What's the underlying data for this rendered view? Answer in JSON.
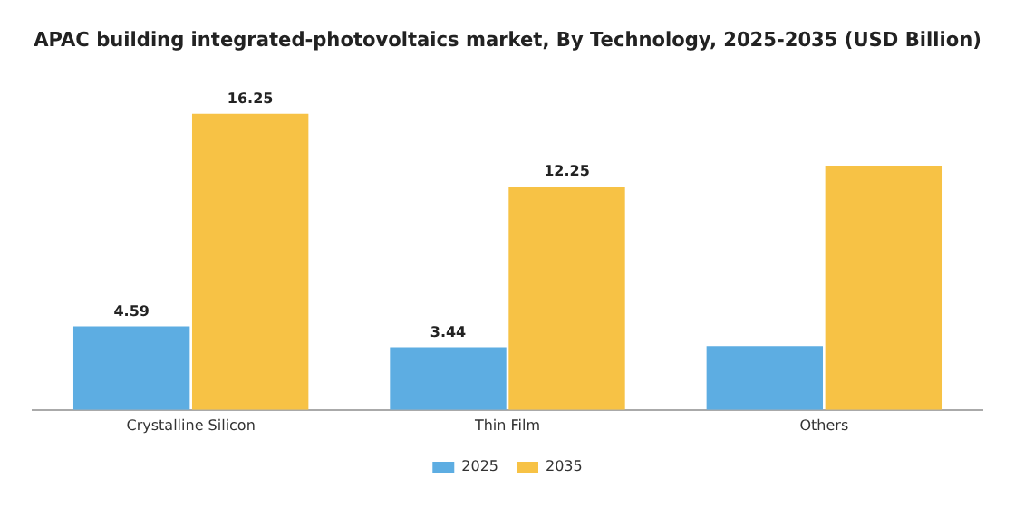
{
  "chart_data": {
    "type": "bar",
    "title": "APAC building integrated-photovoltaics market, By Technology, 2025-2035 (USD Billion)",
    "categories": [
      "Crystalline Silicon",
      "Thin Film",
      "Others"
    ],
    "series": [
      {
        "name": "2025",
        "color": "#5dade2",
        "values": [
          4.59,
          3.44,
          3.5
        ],
        "value_labels": [
          "4.59",
          "3.44",
          null
        ]
      },
      {
        "name": "2035",
        "color": "#f7c245",
        "values": [
          16.25,
          12.25,
          13.4
        ],
        "value_labels": [
          "16.25",
          "12.25",
          null
        ]
      }
    ],
    "legend": "bottom",
    "grid": false
  }
}
